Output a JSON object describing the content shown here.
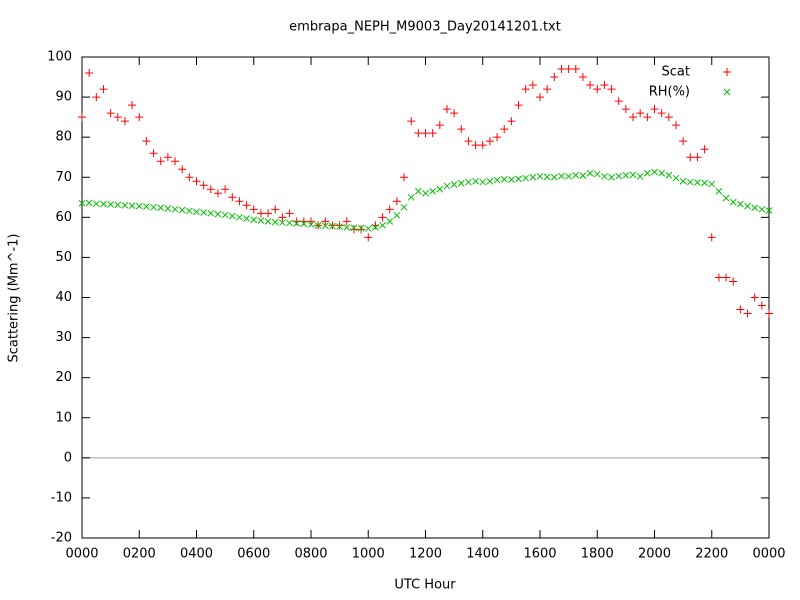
{
  "chart_data": {
    "type": "scatter",
    "title": "embrapa_NEPH_M9003_Day20141201.txt",
    "xlabel": "UTC Hour",
    "ylabel": "Scattering (Mm^-1)",
    "x": [
      0,
      0.25,
      0.5,
      0.75,
      1,
      1.25,
      1.5,
      1.75,
      2,
      2.25,
      2.5,
      2.75,
      3,
      3.25,
      3.5,
      3.75,
      4,
      4.25,
      4.5,
      4.75,
      5,
      5.25,
      5.5,
      5.75,
      6,
      6.25,
      6.5,
      6.75,
      7,
      7.25,
      7.5,
      7.75,
      8,
      8.25,
      8.5,
      8.75,
      9,
      9.25,
      9.5,
      9.75,
      10,
      10.25,
      10.5,
      10.75,
      11,
      11.25,
      11.5,
      11.75,
      12,
      12.25,
      12.5,
      12.75,
      13,
      13.25,
      13.5,
      13.75,
      14,
      14.25,
      14.5,
      14.75,
      15,
      15.25,
      15.5,
      15.75,
      16,
      16.25,
      16.5,
      16.75,
      17,
      17.25,
      17.5,
      17.75,
      18,
      18.25,
      18.5,
      18.75,
      19,
      19.25,
      19.5,
      19.75,
      20,
      20.25,
      20.5,
      20.75,
      21,
      21.25,
      21.5,
      21.75,
      22,
      22.25,
      22.5,
      22.75,
      23,
      23.25,
      23.5,
      23.75,
      24
    ],
    "series": [
      {
        "name": "Scat",
        "color": "#ff0000",
        "marker": "plus",
        "values": [
          85,
          96,
          90,
          92,
          86,
          85,
          84,
          88,
          85,
          79,
          76,
          74,
          75,
          74,
          72,
          70,
          69,
          68,
          67,
          66,
          67,
          65,
          64,
          63,
          62,
          61,
          61,
          62,
          60,
          61,
          59,
          59,
          59,
          58,
          59,
          58,
          58,
          59,
          57,
          57,
          55,
          58,
          60,
          62,
          64,
          70,
          84,
          81,
          81,
          81,
          83,
          87,
          86,
          82,
          79,
          78,
          78,
          79,
          80,
          82,
          84,
          88,
          92,
          93,
          90,
          92,
          95,
          97,
          97,
          97,
          95,
          93,
          92,
          93,
          92,
          89,
          87,
          85,
          86,
          85,
          87,
          86,
          85,
          83,
          79,
          75,
          75,
          77,
          55,
          45,
          45,
          44,
          37,
          36,
          40,
          38,
          36
        ]
      },
      {
        "name": "RH(%)",
        "color": "#00c000",
        "marker": "cross",
        "values": [
          63.5,
          63.6,
          63.4,
          63.3,
          63.2,
          63.1,
          63.0,
          62.9,
          62.8,
          62.7,
          62.5,
          62.4,
          62.2,
          62.0,
          61.8,
          61.6,
          61.4,
          61.2,
          61.0,
          60.8,
          60.6,
          60.3,
          60.0,
          59.7,
          59.4,
          59.2,
          59.0,
          58.8,
          58.7,
          58.6,
          58.5,
          58.4,
          58.2,
          58.0,
          57.9,
          57.8,
          57.7,
          57.5,
          57.4,
          57.3,
          57.2,
          57.5,
          58.0,
          59.0,
          60.5,
          62.5,
          65.0,
          66.5,
          66.0,
          66.5,
          67.0,
          67.8,
          68.2,
          68.5,
          68.8,
          69.0,
          68.8,
          69.0,
          69.3,
          69.5,
          69.4,
          69.6,
          69.8,
          70.0,
          70.2,
          70.1,
          70.0,
          70.3,
          70.2,
          70.5,
          70.4,
          71.0,
          70.8,
          70.2,
          70.0,
          70.3,
          70.5,
          70.6,
          70.2,
          71.0,
          71.3,
          71.0,
          70.5,
          69.8,
          69.0,
          68.8,
          68.7,
          68.6,
          68.3,
          66.5,
          64.8,
          63.8,
          63.3,
          62.8,
          62.4,
          62.0,
          61.7
        ]
      }
    ],
    "xlim": [
      0,
      24
    ],
    "ylim": [
      -20,
      100
    ],
    "xticks": [
      {
        "value": 0,
        "label": "0000"
      },
      {
        "value": 2,
        "label": "0200"
      },
      {
        "value": 4,
        "label": "0400"
      },
      {
        "value": 6,
        "label": "0600"
      },
      {
        "value": 8,
        "label": "0800"
      },
      {
        "value": 10,
        "label": "1000"
      },
      {
        "value": 12,
        "label": "1200"
      },
      {
        "value": 14,
        "label": "1400"
      },
      {
        "value": 16,
        "label": "1600"
      },
      {
        "value": 18,
        "label": "1800"
      },
      {
        "value": 20,
        "label": "2000"
      },
      {
        "value": 22,
        "label": "2200"
      },
      {
        "value": 24,
        "label": "0000"
      }
    ],
    "yticks": [
      -20,
      -10,
      0,
      10,
      20,
      30,
      40,
      50,
      60,
      70,
      80,
      90,
      100
    ],
    "zeroaxis": true,
    "legend": "top-right"
  }
}
